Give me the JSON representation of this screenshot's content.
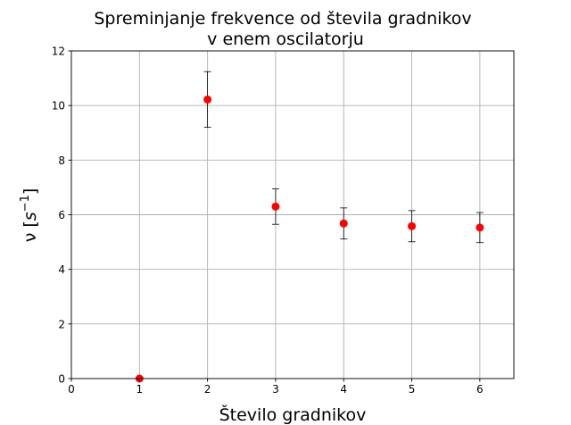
{
  "chart_data": {
    "type": "scatter",
    "title_line1": "Spreminjanje frekvence od števila gradnikov",
    "title_line2": "v enem oscilatorju",
    "xlabel": "Število gradnikov",
    "ylabel_symbol": "ν",
    "ylabel_unit_open": "[",
    "ylabel_unit_base": "s",
    "ylabel_unit_exp": "−1",
    "ylabel_unit_close": "]",
    "xlim": [
      0,
      6.5
    ],
    "ylim": [
      0,
      12
    ],
    "xticks": [
      0,
      1,
      2,
      3,
      4,
      5,
      6
    ],
    "yticks": [
      0,
      2,
      4,
      6,
      8,
      10,
      12
    ],
    "grid": true,
    "marker_color": "#ff0000",
    "points": [
      {
        "x": 1,
        "y": 0.0,
        "err": 0.0
      },
      {
        "x": 2,
        "y": 10.22,
        "err": 1.02
      },
      {
        "x": 3,
        "y": 6.3,
        "err": 0.65
      },
      {
        "x": 4,
        "y": 5.68,
        "err": 0.57
      },
      {
        "x": 5,
        "y": 5.58,
        "err": 0.57
      },
      {
        "x": 6,
        "y": 5.53,
        "err": 0.55
      }
    ]
  }
}
